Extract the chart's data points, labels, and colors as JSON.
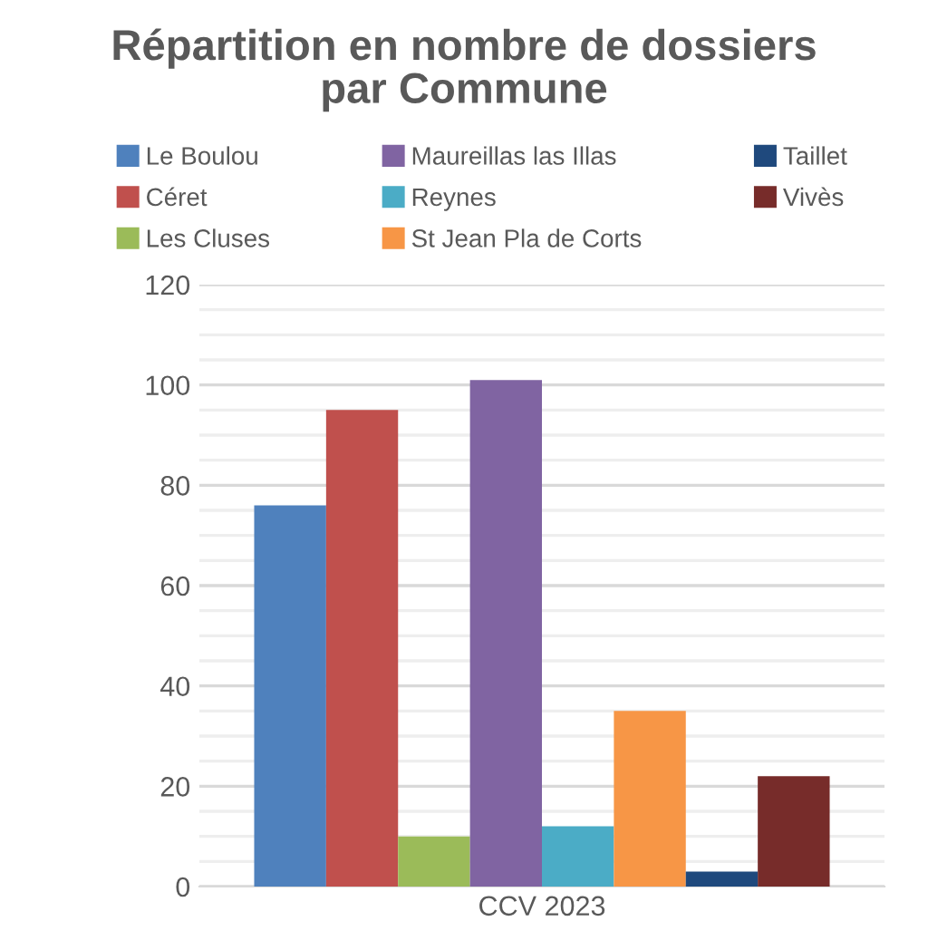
{
  "chart_data": {
    "type": "bar",
    "title": "Répartition en nombre de dossiers\npar Commune",
    "categories": [
      "CCV 2023"
    ],
    "series": [
      {
        "name": "Le Boulou",
        "color": "#4f81bd",
        "values": [
          76
        ]
      },
      {
        "name": "Céret",
        "color": "#c0504d",
        "values": [
          95
        ]
      },
      {
        "name": "Les Cluses",
        "color": "#9bbb59",
        "values": [
          10
        ]
      },
      {
        "name": "Maureillas las Illas",
        "color": "#8064a2",
        "values": [
          101
        ]
      },
      {
        "name": "Reynes",
        "color": "#4bacc6",
        "values": [
          12
        ]
      },
      {
        "name": "St Jean Pla de Corts",
        "color": "#f79646",
        "values": [
          35
        ]
      },
      {
        "name": "Taillet",
        "color": "#1f497d",
        "values": [
          3
        ]
      },
      {
        "name": "Vivès",
        "color": "#772c2a",
        "values": [
          22
        ]
      }
    ],
    "ylim": [
      0,
      120
    ],
    "yticks": [
      0,
      {
        "value": 5,
        "label": null
      },
      {
        "value": 10,
        "label": null
      },
      {
        "value": 15,
        "label": null
      },
      20,
      {
        "value": 25,
        "label": null
      },
      {
        "value": 30,
        "label": null
      },
      {
        "value": 35,
        "label": null
      },
      40,
      {
        "value": 45,
        "label": null
      },
      {
        "value": 50,
        "label": null
      },
      {
        "value": 55,
        "label": null
      },
      60,
      {
        "value": 65,
        "label": null
      },
      {
        "value": 70,
        "label": null
      },
      {
        "value": 75,
        "label": null
      },
      80,
      {
        "value": 85,
        "label": null
      },
      {
        "value": 90,
        "label": null
      },
      {
        "value": 95,
        "label": null
      },
      100,
      {
        "value": 105,
        "label": null
      },
      {
        "value": 110,
        "label": null
      },
      {
        "value": 115,
        "label": null
      },
      120
    ],
    "grid": "y",
    "legend": "top"
  }
}
